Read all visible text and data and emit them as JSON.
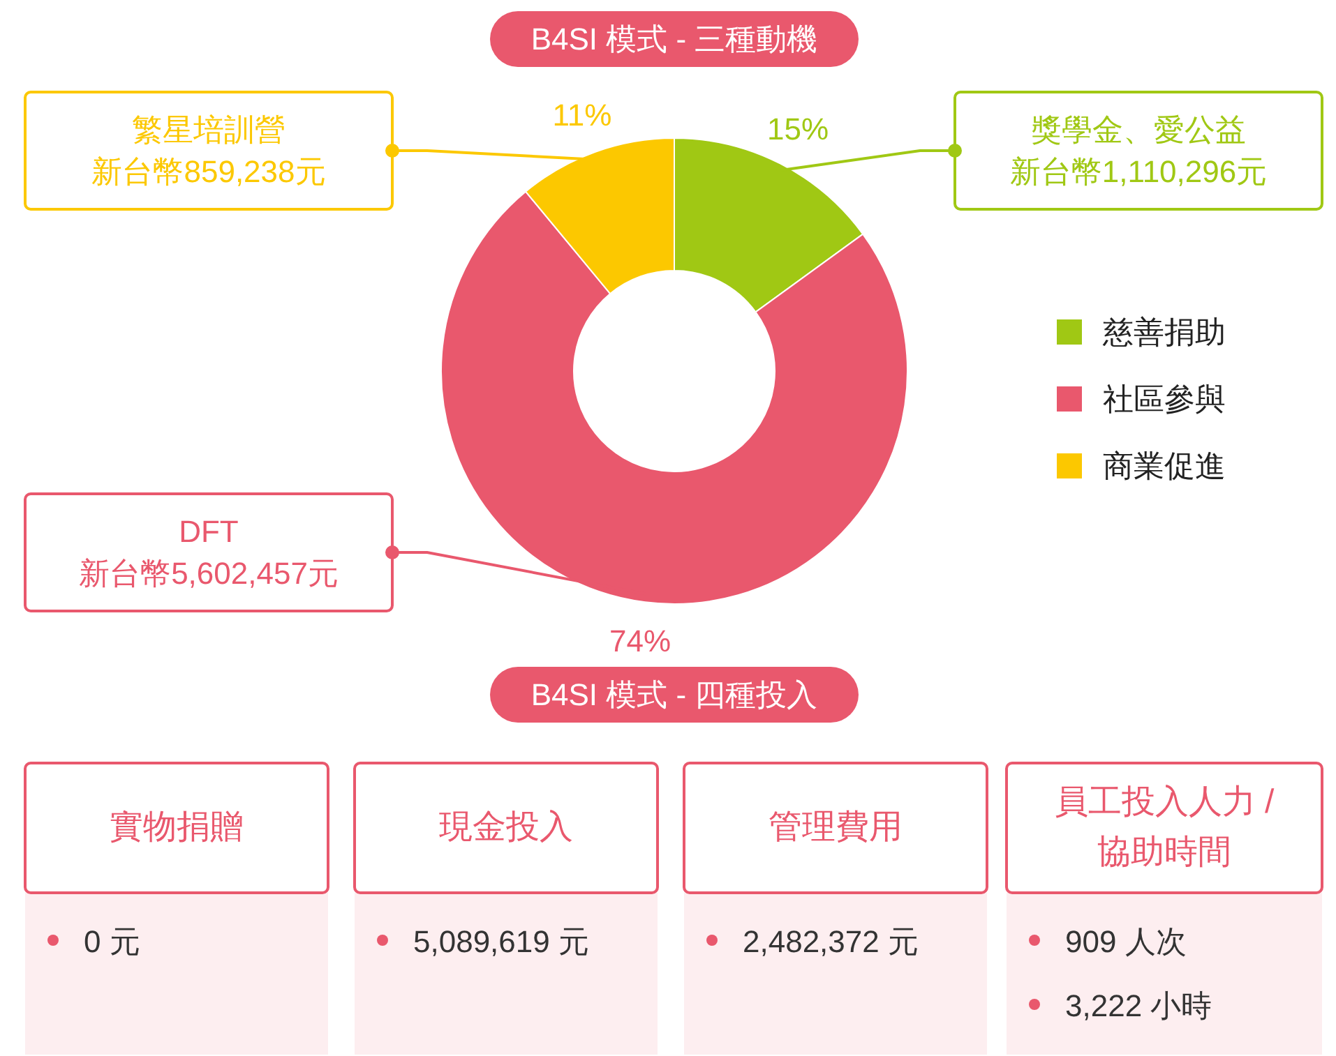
{
  "chart_data": [
    {
      "type": "donut",
      "title": "B4SI 模式 - 三種動機",
      "categories": [
        "慈善捐助",
        "社區參與",
        "商業促進"
      ],
      "values": [
        15,
        74,
        11
      ],
      "colors": [
        "#a0c814",
        "#e9586d",
        "#fcc800"
      ],
      "value_labels": [
        "15%",
        "74%",
        "11%"
      ],
      "legend": "right",
      "annotations": [
        "獎學金、愛公益",
        "新台幣1,110,296元",
        "DFT",
        "新台幣5,602,457元",
        "繁星培訓營",
        "新台幣859,238元"
      ]
    },
    {
      "type": "other",
      "title": "B4SI 模式 - 四種投入",
      "categories": [
        "實物捐贈",
        "現金投入",
        "管理費用",
        "員工投入人力 / 協助時間"
      ],
      "value_labels": [
        [
          "0 元"
        ],
        [
          "5,089,619 元"
        ],
        [
          "2,482,372 元"
        ],
        [
          "909 人次",
          "3,222 小時"
        ]
      ],
      "color": "#e9586d"
    }
  ]
}
